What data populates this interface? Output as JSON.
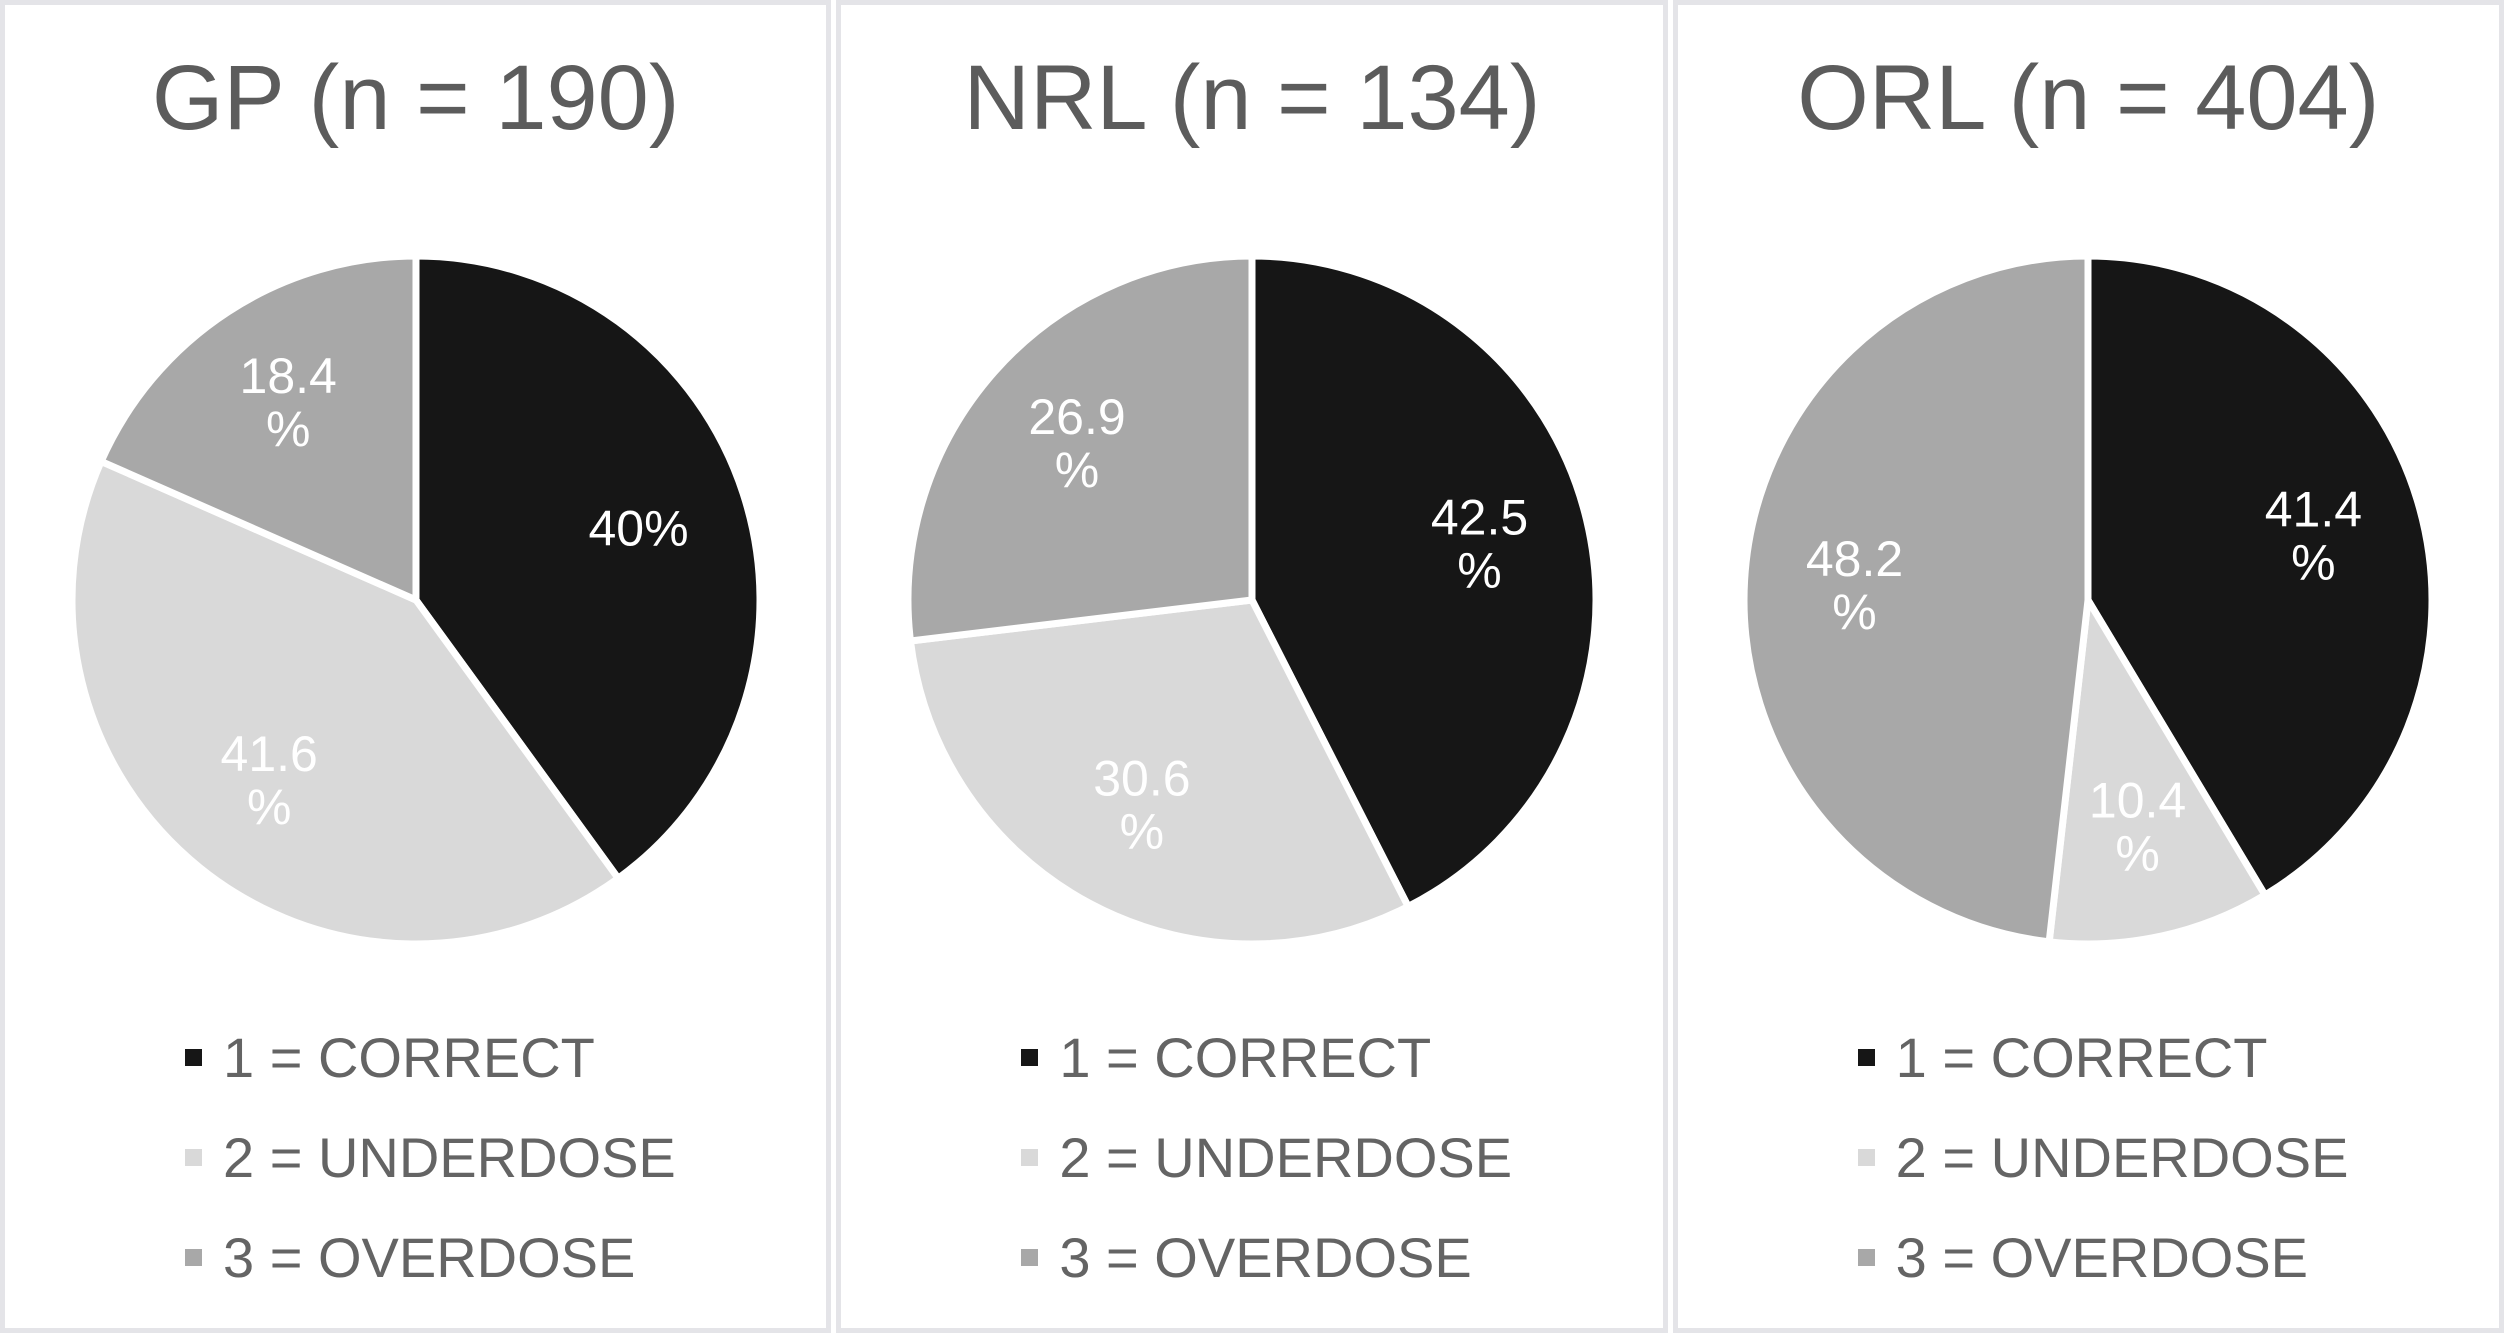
{
  "style": {
    "panel_border_color": "#e4e4e8",
    "panel_background": "#ffffff",
    "title_text_color": "#5c5c5c",
    "legend_text_color": "#646464",
    "slice_label_color": "#ffffff",
    "slice_separator_color": "#ffffff"
  },
  "chart_data": [
    {
      "type": "pie",
      "title": "GP (n = 190)",
      "n": 190,
      "categories": [
        "1 = CORRECT",
        "2 = UNDERDOSE",
        "3 = OVERDOSE"
      ],
      "values": [
        40,
        41.6,
        18.4
      ],
      "unit": "%",
      "slice_labels": [
        [
          "40%"
        ],
        [
          "41.6",
          "%"
        ],
        [
          "18.4",
          "%"
        ]
      ],
      "colors": [
        "#161616",
        "#d9d9d9",
        "#a8a8a8"
      ],
      "start_angle_deg": 0,
      "direction": "clockwise",
      "legend_position": "bottom-left"
    },
    {
      "type": "pie",
      "title": "NRL (n = 134)",
      "n": 134,
      "categories": [
        "1 = CORRECT",
        "2 = UNDERDOSE",
        "3 = OVERDOSE"
      ],
      "values": [
        42.5,
        30.6,
        26.9
      ],
      "unit": "%",
      "slice_labels": [
        [
          "42.5",
          "%"
        ],
        [
          "30.6",
          "%"
        ],
        [
          "26.9",
          "%"
        ]
      ],
      "colors": [
        "#161616",
        "#d9d9d9",
        "#a8a8a8"
      ],
      "start_angle_deg": 0,
      "direction": "clockwise",
      "legend_position": "bottom-left"
    },
    {
      "type": "pie",
      "title": "ORL (n = 404)",
      "n": 404,
      "categories": [
        "1 = CORRECT",
        "2 = UNDERDOSE",
        "3 = OVERDOSE"
      ],
      "values": [
        41.4,
        10.4,
        48.2
      ],
      "unit": "%",
      "slice_labels": [
        [
          "41.4",
          "%"
        ],
        [
          "10.4",
          "%"
        ],
        [
          "48.2",
          "%"
        ]
      ],
      "colors": [
        "#161616",
        "#d9d9d9",
        "#a8a8a8"
      ],
      "start_angle_deg": 0,
      "direction": "clockwise",
      "legend_position": "bottom-left"
    }
  ]
}
